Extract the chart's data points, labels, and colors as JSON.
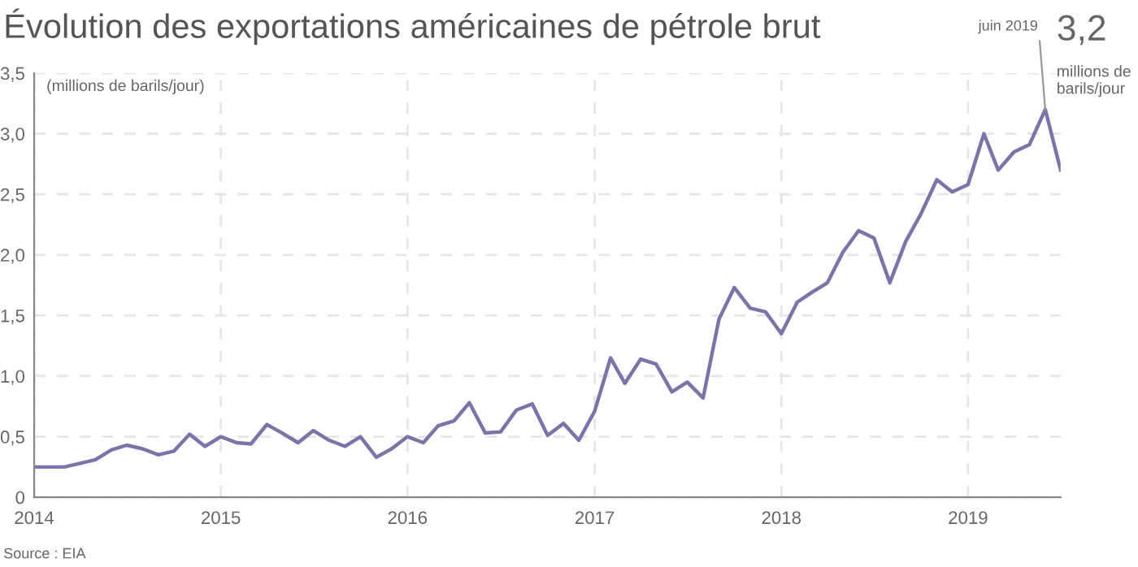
{
  "chart_data": {
    "type": "line",
    "title": "Évolution des exportations américaines de pétrole brut",
    "ylabel": "(millions de barils/jour)",
    "x": [
      "2014-01",
      "2014-02",
      "2014-03",
      "2014-04",
      "2014-05",
      "2014-06",
      "2014-07",
      "2014-08",
      "2014-09",
      "2014-10",
      "2014-11",
      "2014-12",
      "2015-01",
      "2015-02",
      "2015-03",
      "2015-04",
      "2015-05",
      "2015-06",
      "2015-07",
      "2015-08",
      "2015-09",
      "2015-10",
      "2015-11",
      "2015-12",
      "2016-01",
      "2016-02",
      "2016-03",
      "2016-04",
      "2016-05",
      "2016-06",
      "2016-07",
      "2016-08",
      "2016-09",
      "2016-10",
      "2016-11",
      "2016-12",
      "2017-01",
      "2017-02",
      "2017-03",
      "2017-04",
      "2017-05",
      "2017-06",
      "2017-07",
      "2017-08",
      "2017-09",
      "2017-10",
      "2017-11",
      "2017-12",
      "2018-01",
      "2018-02",
      "2018-03",
      "2018-04",
      "2018-05",
      "2018-06",
      "2018-07",
      "2018-08",
      "2018-09",
      "2018-10",
      "2018-11",
      "2018-12",
      "2019-01",
      "2019-02",
      "2019-03",
      "2019-04",
      "2019-05",
      "2019-06",
      "2019-07"
    ],
    "series": [
      {
        "color": "#7b74a8",
        "values": [
          0.25,
          0.25,
          0.25,
          0.28,
          0.31,
          0.39,
          0.43,
          0.4,
          0.35,
          0.38,
          0.52,
          0.42,
          0.5,
          0.45,
          0.44,
          0.6,
          0.53,
          0.45,
          0.55,
          0.47,
          0.42,
          0.5,
          0.33,
          0.4,
          0.5,
          0.45,
          0.59,
          0.63,
          0.78,
          0.53,
          0.54,
          0.72,
          0.77,
          0.51,
          0.61,
          0.47,
          0.71,
          1.15,
          0.94,
          1.14,
          1.1,
          0.87,
          0.95,
          0.82,
          1.47,
          1.73,
          1.56,
          1.53,
          1.35,
          1.61,
          1.69,
          1.77,
          2.02,
          2.2,
          2.14,
          1.77,
          2.11,
          2.34,
          2.62,
          2.52,
          2.58,
          3.0,
          2.7,
          2.85,
          2.91,
          3.2,
          2.7
        ]
      }
    ],
    "xlim": [
      "2014-01",
      "2019-07"
    ],
    "xticks": [
      {
        "value": "2014-01",
        "label": "2014"
      },
      {
        "value": "2015-01",
        "label": "2015"
      },
      {
        "value": "2016-01",
        "label": "2016"
      },
      {
        "value": "2017-01",
        "label": "2017"
      },
      {
        "value": "2018-01",
        "label": "2018"
      },
      {
        "value": "2019-01",
        "label": "2019"
      }
    ],
    "ylim": [
      0,
      3.5
    ],
    "yticks": [
      0,
      {
        "value": 0.5,
        "label": "0,5"
      },
      {
        "value": 1.0,
        "label": "1,0"
      },
      {
        "value": 1.5,
        "label": "1,5"
      },
      {
        "value": 2.0,
        "label": "2,0"
      },
      {
        "value": 2.5,
        "label": "2,5"
      },
      {
        "value": 3.0,
        "label": "3,0"
      },
      {
        "value": 3.5,
        "label": "3,5"
      }
    ],
    "grid": true,
    "marker": "none",
    "line_style": "solid",
    "annotations": [
      "Source : EIA",
      {
        "text": "juin 2019",
        "x": "2019-06",
        "y": 3.2
      },
      {
        "text": "3,2",
        "x": "2019-06",
        "y": 3.2
      },
      "millions de\nbarils/jour"
    ]
  }
}
